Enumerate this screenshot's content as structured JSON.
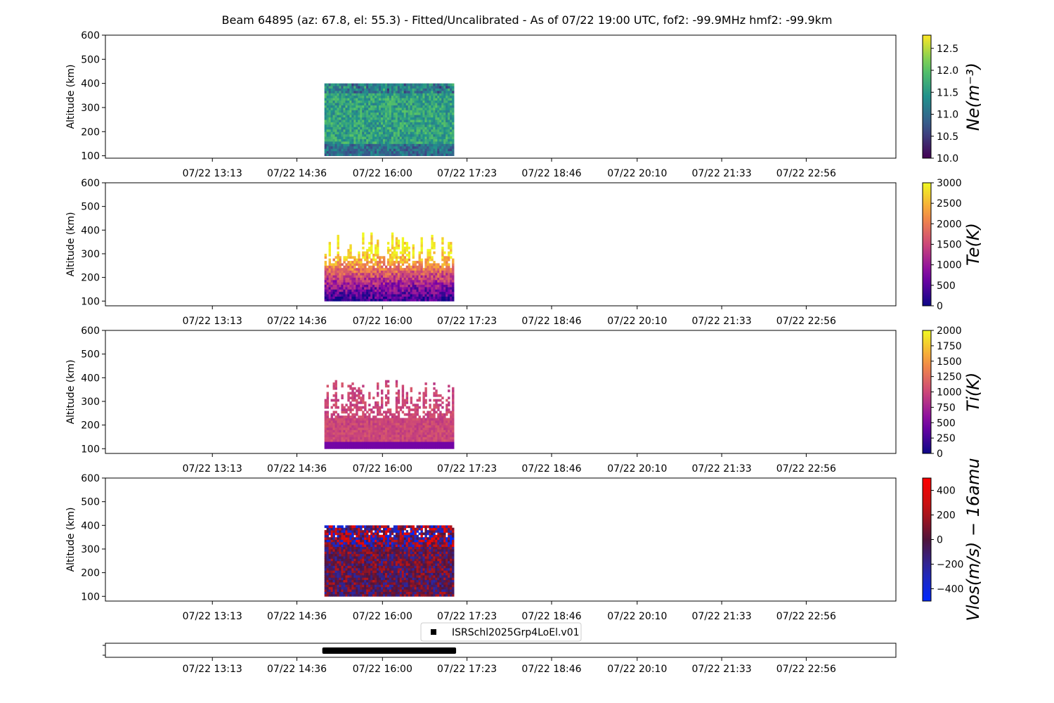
{
  "title": "Beam 64895 (az: 67.8, el: 55.3) - Fitted/Uncalibrated - As of 07/22 19:00 UTC, fof2: -99.9MHz  hmf2: -99.9km",
  "x_tick_labels": [
    "07/22 13:13",
    "07/22 14:36",
    "07/22 16:00",
    "07/22 17:23",
    "07/22 18:46",
    "07/22 20:10",
    "07/22 21:33",
    "07/22 22:56"
  ],
  "x_ticks_hours": [
    13.217,
    14.6,
    16.0,
    17.383,
    18.767,
    20.167,
    21.55,
    22.933
  ],
  "x_range_hours": [
    11.467,
    24.4
  ],
  "chart_data": [
    {
      "type": "heatmap",
      "ylabel": "Altitude (km)",
      "ylim": [
        90,
        600
      ],
      "y_ticks": [
        100,
        200,
        300,
        400,
        500,
        600
      ],
      "colorbar_label": "Ne(m⁻³)",
      "colormap": "viridis",
      "clim": [
        10.0,
        12.8
      ],
      "colorbar_ticks": [
        "10.0",
        "10.5",
        "11.0",
        "11.5",
        "12.0",
        "12.5"
      ],
      "colorbar_tick_values": [
        10.0,
        10.5,
        11.0,
        11.5,
        12.0,
        12.5
      ],
      "time_range_hours": [
        15.05,
        17.17
      ],
      "altitude_range_km": [
        100,
        400
      ],
      "typical_value": 11.6
    },
    {
      "type": "heatmap",
      "ylabel": "Altitude (km)",
      "ylim": [
        80,
        600
      ],
      "y_ticks": [
        100,
        200,
        300,
        400,
        500,
        600
      ],
      "colorbar_label": "Te(K)",
      "colormap": "plasma",
      "clim": [
        0,
        3000
      ],
      "colorbar_ticks": [
        "0",
        "500",
        "1000",
        "1500",
        "2000",
        "2500",
        "3000"
      ],
      "colorbar_tick_values": [
        0,
        500,
        1000,
        1500,
        2000,
        2500,
        3000
      ],
      "time_range_hours": [
        15.05,
        17.17
      ],
      "altitude_range_km": [
        100,
        400
      ],
      "typical_value": 2200
    },
    {
      "type": "heatmap",
      "ylabel": "Altitude (km)",
      "ylim": [
        80,
        600
      ],
      "y_ticks": [
        100,
        200,
        300,
        400,
        500,
        600
      ],
      "colorbar_label": "Ti(K)",
      "colormap": "plasma",
      "clim": [
        0,
        2000
      ],
      "colorbar_ticks": [
        "0",
        "250",
        "500",
        "750",
        "1000",
        "1250",
        "1500",
        "1750",
        "2000"
      ],
      "colorbar_tick_values": [
        0,
        250,
        500,
        750,
        1000,
        1250,
        1500,
        1750,
        2000
      ],
      "time_range_hours": [
        15.05,
        17.17
      ],
      "altitude_range_km": [
        100,
        400
      ],
      "typical_value": 1000
    },
    {
      "type": "heatmap",
      "ylabel": "Altitude (km)",
      "ylim": [
        80,
        600
      ],
      "y_ticks": [
        100,
        200,
        300,
        400,
        500,
        600
      ],
      "colorbar_label": "Vlos(m/s) − 16amu",
      "colormap": "diverging-blue-red",
      "clim": [
        -500,
        500
      ],
      "colorbar_ticks": [
        "−400",
        "−200",
        "0",
        "200",
        "400"
      ],
      "colorbar_tick_values": [
        -400,
        -200,
        0,
        200,
        400
      ],
      "time_range_hours": [
        15.05,
        17.17
      ],
      "altitude_range_km": [
        100,
        400
      ],
      "typical_value": 0
    }
  ],
  "experiment_timeline": {
    "legend_label": "ISRSchl2025Grp4LoEl.v01",
    "start_hours": 15.05,
    "end_hours": 17.17
  }
}
